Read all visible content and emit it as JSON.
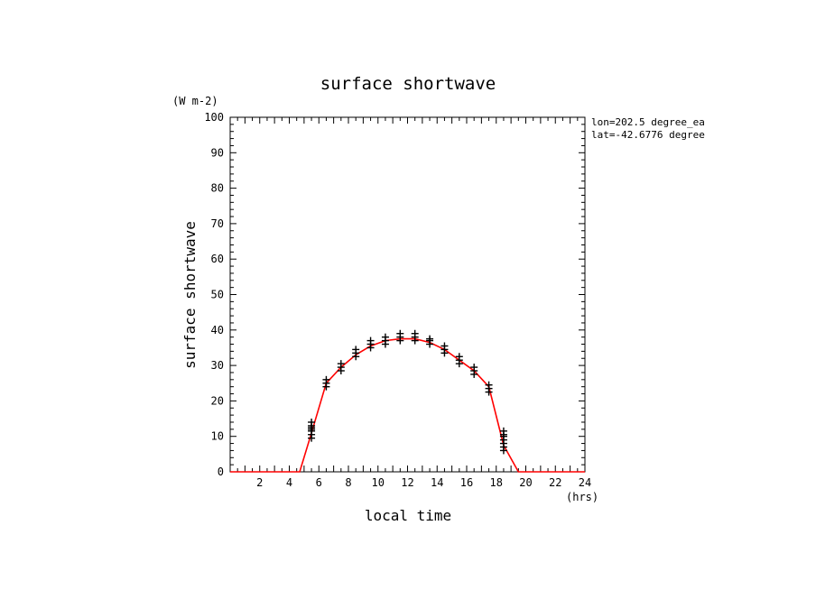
{
  "chart_data": {
    "type": "scatter",
    "title": "surface shortwave",
    "xlabel": "local time",
    "ylabel": "surface shortwave",
    "x_unit": "(hrs)",
    "y_unit": "(W m-2)",
    "info_lines": [
      "lon=202.5 degree_ea",
      "lat=-42.6776 degree"
    ],
    "xlim": [
      0,
      24
    ],
    "ylim": [
      0,
      100
    ],
    "x_ticks": [
      2,
      4,
      6,
      8,
      10,
      12,
      14,
      16,
      18,
      20,
      22,
      24
    ],
    "y_ticks": [
      0,
      10,
      20,
      30,
      40,
      50,
      60,
      70,
      80,
      90,
      100
    ],
    "grid": false,
    "series": [
      {
        "type": "scatter",
        "marker": "+",
        "color": "#000000",
        "x": [
          5.5,
          5.5,
          5.5,
          5.5,
          5.5,
          5.5,
          5.5,
          6.5,
          6.5,
          6.5,
          7.5,
          7.5,
          7.5,
          8.5,
          8.5,
          8.5,
          9.5,
          9.5,
          9.5,
          10.5,
          10.5,
          10.5,
          11.5,
          11.5,
          11.5,
          12.5,
          12.5,
          12.5,
          13.5,
          13.5,
          13.5,
          14.5,
          14.5,
          14.5,
          15.5,
          15.5,
          15.5,
          16.5,
          16.5,
          16.5,
          17.5,
          17.5,
          17.5,
          18.5,
          18.5,
          18.5,
          18.5,
          18.5,
          18.5,
          18.5
        ],
        "y": [
          9.5,
          10.5,
          11.5,
          12.0,
          12.5,
          13.0,
          14.0,
          24.0,
          25.0,
          26.0,
          28.5,
          29.5,
          30.5,
          32.5,
          33.5,
          34.5,
          35.0,
          36.0,
          37.0,
          36.0,
          37.0,
          38.0,
          37.0,
          38.0,
          39.0,
          37.0,
          38.0,
          39.0,
          36.0,
          37.0,
          37.5,
          33.5,
          34.5,
          35.5,
          30.5,
          31.5,
          32.5,
          27.5,
          28.5,
          29.5,
          22.5,
          23.5,
          24.5,
          6.0,
          7.0,
          8.0,
          9.0,
          10.0,
          10.5,
          11.5
        ]
      },
      {
        "type": "line",
        "color": "#ff0000",
        "x": [
          0,
          1,
          2,
          3,
          4,
          4.7,
          5.5,
          6.5,
          7.5,
          8.5,
          9.5,
          10.5,
          11.5,
          12.5,
          13.5,
          14.5,
          15.5,
          16.5,
          17.5,
          18.5,
          19.5,
          20,
          21,
          22,
          23,
          24
        ],
        "y": [
          0,
          0,
          0,
          0,
          0,
          0,
          11,
          25,
          29.5,
          33,
          35.5,
          37,
          37.5,
          37.5,
          36.5,
          34.5,
          31.5,
          28.5,
          24,
          7.5,
          0,
          0,
          0,
          0,
          0,
          0
        ]
      }
    ]
  }
}
